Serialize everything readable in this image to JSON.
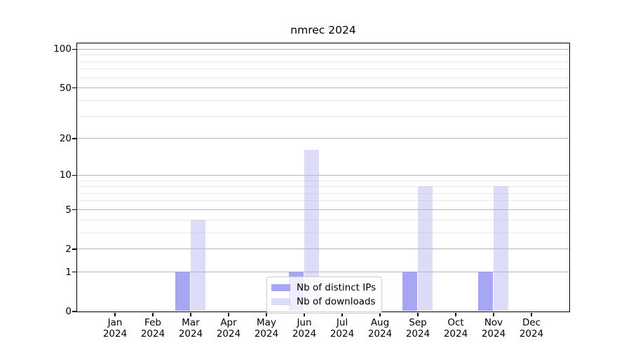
{
  "chart_data": {
    "type": "bar",
    "title": "nmrec 2024",
    "categories": [
      "Jan 2024",
      "Feb 2024",
      "Mar 2024",
      "Apr 2024",
      "May 2024",
      "Jun 2024",
      "Jul 2024",
      "Aug 2024",
      "Sep 2024",
      "Oct 2024",
      "Nov 2024",
      "Dec 2024"
    ],
    "series": [
      {
        "name": "Nb of distinct IPs",
        "color": "#a6a6f3",
        "opacity": 1.0,
        "values": [
          0,
          0,
          1,
          0,
          0,
          1,
          0,
          0,
          1,
          0,
          1,
          0
        ]
      },
      {
        "name": "Nb of downloads",
        "color": "#b9b9f1",
        "opacity": 0.5,
        "values": [
          0,
          0,
          4,
          0,
          0,
          16,
          0,
          0,
          8,
          0,
          8,
          0
        ]
      }
    ],
    "y_axis": {
      "scale": "log1p",
      "major_ticks": [
        0,
        1,
        2,
        5,
        10,
        20,
        50,
        100
      ],
      "minor_gridlines": [
        3,
        4,
        6,
        7,
        8,
        9,
        30,
        40,
        60,
        70,
        80,
        90
      ],
      "ylim": [
        0,
        113
      ]
    },
    "x_axis": {
      "tick_label_lines": 2
    },
    "legend": {
      "position": "lower-center",
      "entries": [
        "Nb of distinct IPs",
        "Nb of downloads"
      ]
    },
    "grid": {
      "major_color": "#b4b4b4",
      "minor_color": "#e9e9e9",
      "orientation": "horizontal"
    },
    "colors": {
      "background": "#ffffff",
      "spine": "#000000",
      "text": "#000000",
      "legend_border": "#cccccc"
    }
  }
}
